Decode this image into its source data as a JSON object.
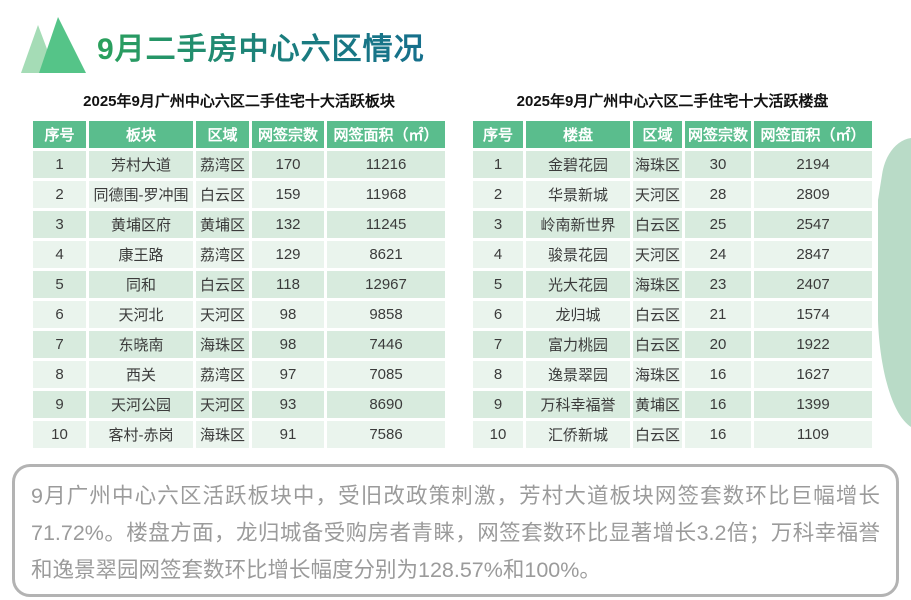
{
  "page_title": "9月二手房中心六区情况",
  "colors": {
    "title_gradient_start": "#2ba15c",
    "title_gradient_end": "#156f8c",
    "table_header_bg": "#5abd8d",
    "row_odd_bg": "#d8ebde",
    "row_even_bg": "#eaf4ed",
    "logo_light_triangle": "#a5dcb6",
    "logo_dark_triangle": "#55c488",
    "blob_fill": "#b9dbc7",
    "summary_text": "#9b9b9b",
    "summary_border": "#b3b3b3"
  },
  "icons": {
    "logo": "two-mountain-triangles",
    "blob": "rounded-leaf-corner-decoration"
  },
  "chart_data": [
    {
      "type": "table",
      "title": "2025年9月广州中心六区二手住宅十大活跃板块",
      "columns": [
        "序号",
        "板块",
        "区域",
        "网签宗数",
        "网签面积（㎡）"
      ],
      "rows": [
        [
          "1",
          "芳村大道",
          "荔湾区",
          "170",
          "11216"
        ],
        [
          "2",
          "同德围-罗冲围",
          "白云区",
          "159",
          "11968"
        ],
        [
          "3",
          "黄埔区府",
          "黄埔区",
          "132",
          "11245"
        ],
        [
          "4",
          "康王路",
          "荔湾区",
          "129",
          "8621"
        ],
        [
          "5",
          "同和",
          "白云区",
          "118",
          "12967"
        ],
        [
          "6",
          "天河北",
          "天河区",
          "98",
          "9858"
        ],
        [
          "7",
          "东晓南",
          "海珠区",
          "98",
          "7446"
        ],
        [
          "8",
          "西关",
          "荔湾区",
          "97",
          "7085"
        ],
        [
          "9",
          "天河公园",
          "天河区",
          "93",
          "8690"
        ],
        [
          "10",
          "客村-赤岗",
          "海珠区",
          "91",
          "7586"
        ]
      ]
    },
    {
      "type": "table",
      "title": "2025年9月广州中心六区二手住宅十大活跃楼盘",
      "columns": [
        "序号",
        "楼盘",
        "区域",
        "网签宗数",
        "网签面积（㎡）"
      ],
      "rows": [
        [
          "1",
          "金碧花园",
          "海珠区",
          "30",
          "2194"
        ],
        [
          "2",
          "华景新城",
          "天河区",
          "28",
          "2809"
        ],
        [
          "3",
          "岭南新世界",
          "白云区",
          "25",
          "2547"
        ],
        [
          "4",
          "骏景花园",
          "天河区",
          "24",
          "2847"
        ],
        [
          "5",
          "光大花园",
          "海珠区",
          "23",
          "2407"
        ],
        [
          "6",
          "龙归城",
          "白云区",
          "21",
          "1574"
        ],
        [
          "7",
          "富力桃园",
          "白云区",
          "20",
          "1922"
        ],
        [
          "8",
          "逸景翠园",
          "海珠区",
          "16",
          "1627"
        ],
        [
          "9",
          "万科幸福誉",
          "黄埔区",
          "16",
          "1399"
        ],
        [
          "10",
          "汇侨新城",
          "白云区",
          "16",
          "1109"
        ]
      ]
    }
  ],
  "summary": "9月广州中心六区活跃板块中，受旧改政策刺激，芳村大道板块网签套数环比巨幅增长71.72%。楼盘方面，龙归城备受购房者青睐，网签套数环比显著增长3.2倍；万科幸福誉和逸景翠园网签套数环比增长幅度分别为128.57%和100%。"
}
